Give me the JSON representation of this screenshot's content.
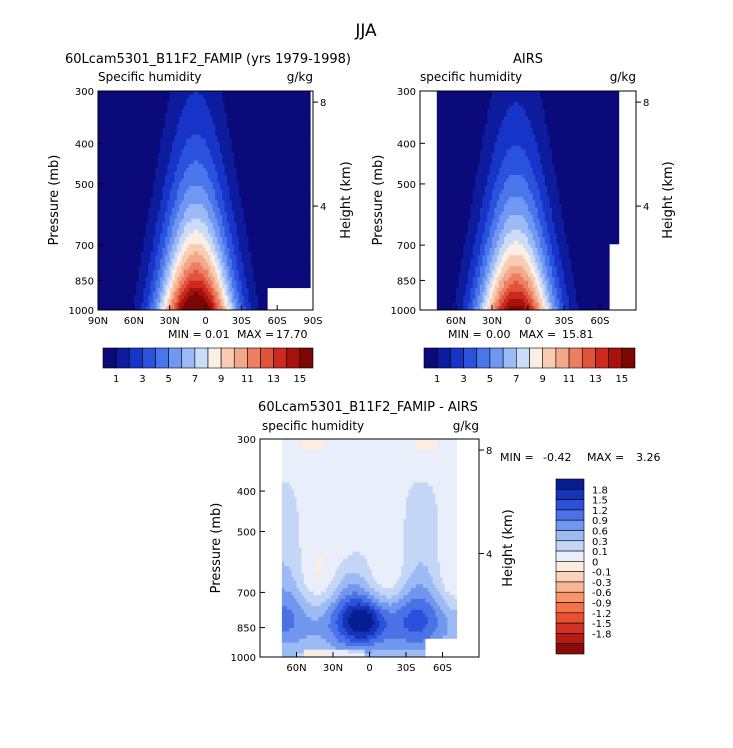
{
  "main_title": "JJA",
  "chart_data": [
    {
      "type": "heatmap",
      "title": "60Lcam5301_B11F2_FAMIP (yrs 1979-1998)",
      "variable": "Specific humidity",
      "units": "g/kg",
      "ylabel": "Pressure (mb)",
      "y2label": "Height (km)",
      "y_ticks": [
        "300",
        "400",
        "500",
        "700",
        "850",
        "1000"
      ],
      "y2_ticks": [
        "8",
        "4"
      ],
      "x_ticks": [
        "90N",
        "60N",
        "30N",
        "0",
        "30S",
        "60S",
        "90S"
      ],
      "stats": {
        "min_label": "MIN =",
        "min": "0.01",
        "max_label": "MAX =",
        "max": "17.70"
      },
      "colorbar_ticks": [
        "1",
        "3",
        "5",
        "7",
        "9",
        "11",
        "13",
        "15"
      ],
      "colorbar_colors": [
        "#0a0a7a",
        "#0c1c9c",
        "#1634c8",
        "#2a52dc",
        "#4a76ec",
        "#7098f2",
        "#9cbaf6",
        "#cadcf8",
        "#fbeee4",
        "#f8cdb4",
        "#f3a88a",
        "#ec7e62",
        "#e0543c",
        "#cc2a1e",
        "#a8120e",
        "#7a0606"
      ],
      "colormap_range": [
        0,
        16
      ],
      "humidity_peak": 17.7,
      "max_lat": 90
    },
    {
      "type": "heatmap",
      "title": "AIRS",
      "variable": "specific humidity",
      "units": "g/kg",
      "ylabel": "Pressure (mb)",
      "y2label": "Height (km)",
      "y_ticks": [
        "300",
        "400",
        "500",
        "700",
        "850",
        "1000"
      ],
      "y2_ticks": [
        "8",
        "4"
      ],
      "x_ticks": [
        "60N",
        "30N",
        "0",
        "30S",
        "60S"
      ],
      "stats": {
        "min_label": "MIN =",
        "min": "0.00",
        "max_label": "MAX =",
        "max": "15.81"
      },
      "colorbar_ticks": [
        "1",
        "3",
        "5",
        "7",
        "9",
        "11",
        "13",
        "15"
      ],
      "colorbar_colors": [
        "#0a0a7a",
        "#0c1c9c",
        "#1634c8",
        "#2a52dc",
        "#4a76ec",
        "#7098f2",
        "#9cbaf6",
        "#cadcf8",
        "#fbeee4",
        "#f8cdb4",
        "#f3a88a",
        "#ec7e62",
        "#e0543c",
        "#cc2a1e",
        "#a8120e",
        "#7a0606"
      ],
      "colormap_range": [
        0,
        16
      ],
      "humidity_peak": 15.81,
      "max_lat": 75
    },
    {
      "type": "heatmap",
      "title": "60Lcam5301_B11F2_FAMIP - AIRS",
      "variable": "specific humidity",
      "units": "g/kg",
      "ylabel": "Pressure (mb)",
      "y2label": "Height (km)",
      "y_ticks": [
        "300",
        "400",
        "500",
        "700",
        "850",
        "1000"
      ],
      "y2_ticks": [
        "8",
        "4"
      ],
      "x_ticks": [
        "60N",
        "30N",
        "0",
        "30S",
        "60S"
      ],
      "stats": {
        "min_label": "MIN =",
        "min": "-0.42",
        "max_label": "MAX =",
        "max": "3.26"
      },
      "colorbar_ticks": [
        "1.8",
        "1.5",
        "1.2",
        "0.9",
        "0.6",
        "0.3",
        "0.1",
        "0",
        "-0.1",
        "-0.3",
        "-0.6",
        "-0.9",
        "-1.2",
        "-1.5",
        "-1.8"
      ],
      "colorbar_colors": [
        "#8c0a0a",
        "#b41c14",
        "#d23220",
        "#e85030",
        "#f57248",
        "#f8946c",
        "#fab496",
        "#fcd2bc",
        "#fdece0",
        "#e8eefa",
        "#c4d6f6",
        "#9cbaf4",
        "#7096ee",
        "#4a72e6",
        "#2a50dc",
        "#1434b8",
        "#061e92"
      ],
      "colormap_range": [
        -2.0,
        2.0
      ]
    }
  ]
}
